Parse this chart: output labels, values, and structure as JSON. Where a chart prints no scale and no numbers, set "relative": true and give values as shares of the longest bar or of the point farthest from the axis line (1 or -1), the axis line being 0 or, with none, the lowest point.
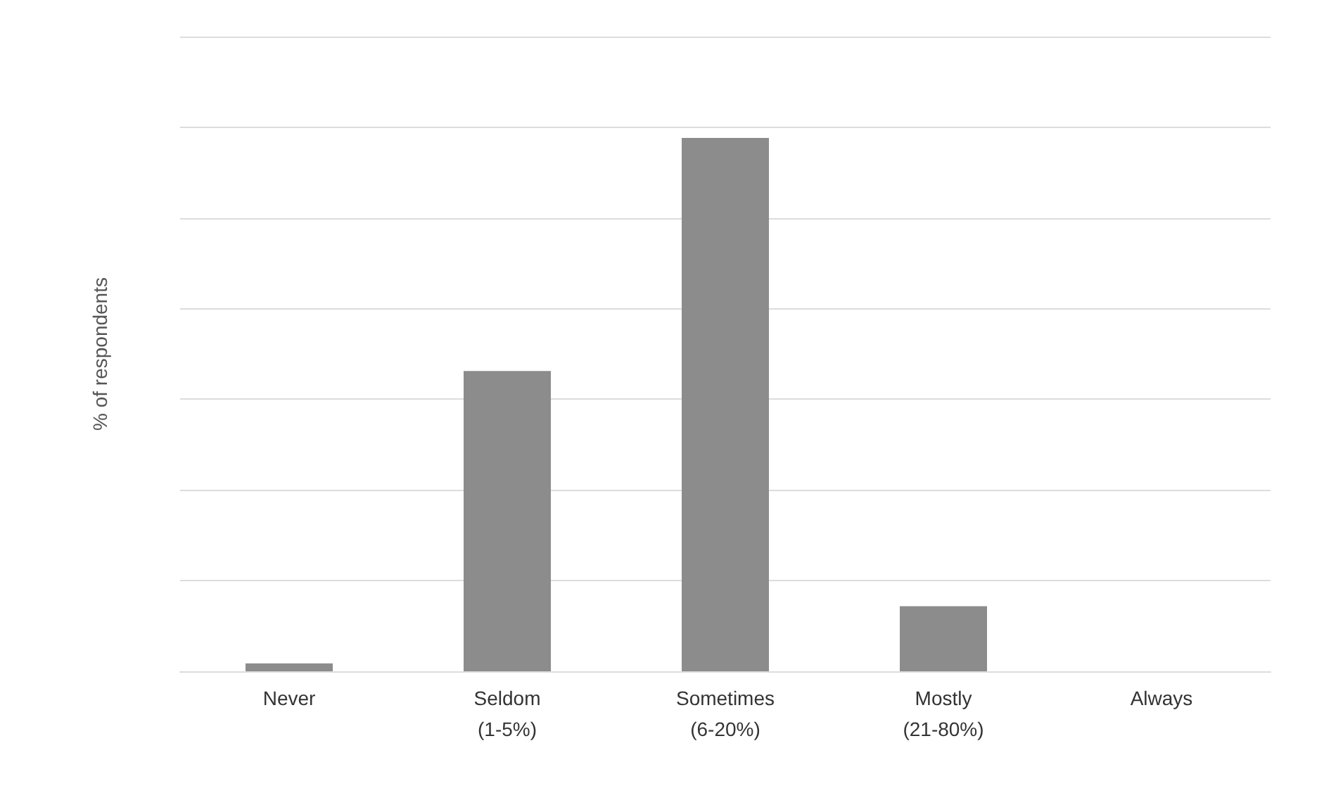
{
  "chart_data": {
    "type": "bar",
    "ylabel": "% of respondents",
    "categories": [
      "Never",
      "Seldom\n(1-5%)",
      "Sometimes\n(6-20%)",
      "Mostly\n(21-80%)",
      "Always"
    ],
    "values": [
      0.015,
      0.563,
      1,
      0.122,
      0
    ],
    "color": "#8c8c8c",
    "relative": true,
    "grid": "y"
  }
}
